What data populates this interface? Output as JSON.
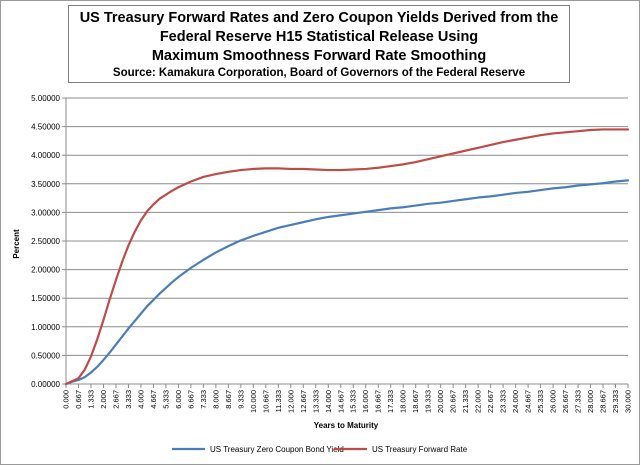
{
  "chart_data": {
    "type": "line",
    "title_lines": [
      "US Treasury Forward Rates and Zero Coupon Yields Derived from the",
      "Federal Reserve H15 Statistical Release Using",
      "Maximum Smoothness Forward Rate Smoothing"
    ],
    "subtitle": "Source: Kamakura Corporation, Board of Governors of the Federal Reserve",
    "xlabel": "Years to Maturity",
    "ylabel": "Percent",
    "ylim": [
      0,
      5
    ],
    "xlim": [
      0,
      30
    ],
    "y_ticks": [
      "0.00000",
      "0.50000",
      "1.00000",
      "1.50000",
      "2.00000",
      "2.50000",
      "3.00000",
      "3.50000",
      "4.00000",
      "4.50000",
      "5.00000"
    ],
    "x_ticks": [
      "0.000",
      "0.667",
      "1.333",
      "2.000",
      "2.667",
      "3.333",
      "4.000",
      "4.667",
      "5.333",
      "6.000",
      "6.667",
      "7.333",
      "8.000",
      "8.667",
      "9.333",
      "10.000",
      "10.667",
      "11.333",
      "12.000",
      "12.667",
      "13.333",
      "14.000",
      "14.667",
      "15.333",
      "16.000",
      "16.667",
      "17.333",
      "18.000",
      "18.667",
      "19.333",
      "20.000",
      "20.667",
      "21.333",
      "22.000",
      "22.667",
      "23.333",
      "24.000",
      "24.667",
      "25.333",
      "26.000",
      "26.667",
      "27.333",
      "28.000",
      "28.667",
      "29.333",
      "30.000"
    ],
    "grid": "horizontal",
    "legend_position": "bottom",
    "series": [
      {
        "name": "US Treasury Zero Coupon Bond Yield",
        "color": "#4a7ebb",
        "points": [
          [
            0,
            0
          ],
          [
            0.333,
            0.04
          ],
          [
            0.667,
            0.07
          ],
          [
            1.0,
            0.12
          ],
          [
            1.333,
            0.2
          ],
          [
            1.667,
            0.3
          ],
          [
            2.0,
            0.42
          ],
          [
            2.333,
            0.55
          ],
          [
            2.667,
            0.69
          ],
          [
            3.0,
            0.83
          ],
          [
            3.333,
            0.97
          ],
          [
            3.667,
            1.1
          ],
          [
            4.0,
            1.23
          ],
          [
            4.333,
            1.36
          ],
          [
            4.667,
            1.47
          ],
          [
            5.0,
            1.58
          ],
          [
            5.333,
            1.68
          ],
          [
            5.667,
            1.78
          ],
          [
            6.0,
            1.87
          ],
          [
            6.667,
            2.03
          ],
          [
            7.333,
            2.17
          ],
          [
            8.0,
            2.3
          ],
          [
            8.667,
            2.41
          ],
          [
            9.333,
            2.51
          ],
          [
            10.0,
            2.59
          ],
          [
            10.667,
            2.66
          ],
          [
            11.333,
            2.73
          ],
          [
            12.0,
            2.78
          ],
          [
            12.667,
            2.83
          ],
          [
            13.333,
            2.88
          ],
          [
            14.0,
            2.92
          ],
          [
            14.667,
            2.95
          ],
          [
            15.333,
            2.98
          ],
          [
            16.0,
            3.01
          ],
          [
            16.667,
            3.04
          ],
          [
            17.333,
            3.07
          ],
          [
            18.0,
            3.09
          ],
          [
            18.667,
            3.12
          ],
          [
            19.333,
            3.15
          ],
          [
            20.0,
            3.17
          ],
          [
            20.667,
            3.2
          ],
          [
            21.333,
            3.23
          ],
          [
            22.0,
            3.26
          ],
          [
            22.667,
            3.28
          ],
          [
            23.333,
            3.31
          ],
          [
            24.0,
            3.34
          ],
          [
            24.667,
            3.36
          ],
          [
            25.333,
            3.39
          ],
          [
            26.0,
            3.42
          ],
          [
            26.667,
            3.44
          ],
          [
            27.333,
            3.47
          ],
          [
            28.0,
            3.49
          ],
          [
            28.667,
            3.51
          ],
          [
            29.333,
            3.54
          ],
          [
            30.0,
            3.56
          ]
        ]
      },
      {
        "name": "US Treasury Forward Rate",
        "color": "#be4b48",
        "points": [
          [
            0,
            0
          ],
          [
            0.333,
            0.05
          ],
          [
            0.667,
            0.1
          ],
          [
            1.0,
            0.25
          ],
          [
            1.333,
            0.48
          ],
          [
            1.667,
            0.78
          ],
          [
            2.0,
            1.12
          ],
          [
            2.333,
            1.48
          ],
          [
            2.667,
            1.82
          ],
          [
            3.0,
            2.14
          ],
          [
            3.333,
            2.42
          ],
          [
            3.667,
            2.66
          ],
          [
            4.0,
            2.86
          ],
          [
            4.333,
            3.02
          ],
          [
            4.667,
            3.14
          ],
          [
            5.0,
            3.24
          ],
          [
            5.333,
            3.31
          ],
          [
            5.667,
            3.38
          ],
          [
            6.0,
            3.44
          ],
          [
            6.667,
            3.54
          ],
          [
            7.333,
            3.62
          ],
          [
            8.0,
            3.67
          ],
          [
            8.667,
            3.71
          ],
          [
            9.333,
            3.74
          ],
          [
            10.0,
            3.76
          ],
          [
            10.667,
            3.77
          ],
          [
            11.333,
            3.77
          ],
          [
            12.0,
            3.76
          ],
          [
            12.667,
            3.76
          ],
          [
            13.333,
            3.75
          ],
          [
            14.0,
            3.74
          ],
          [
            14.667,
            3.74
          ],
          [
            15.333,
            3.75
          ],
          [
            16.0,
            3.76
          ],
          [
            16.667,
            3.78
          ],
          [
            17.333,
            3.81
          ],
          [
            18.0,
            3.84
          ],
          [
            18.667,
            3.88
          ],
          [
            19.333,
            3.93
          ],
          [
            20.0,
            3.98
          ],
          [
            20.667,
            4.03
          ],
          [
            21.333,
            4.08
          ],
          [
            22.0,
            4.13
          ],
          [
            22.667,
            4.18
          ],
          [
            23.333,
            4.23
          ],
          [
            24.0,
            4.27
          ],
          [
            24.667,
            4.31
          ],
          [
            25.333,
            4.35
          ],
          [
            26.0,
            4.38
          ],
          [
            26.667,
            4.4
          ],
          [
            27.333,
            4.42
          ],
          [
            28.0,
            4.44
          ],
          [
            28.667,
            4.45
          ],
          [
            29.333,
            4.45
          ],
          [
            30.0,
            4.45
          ]
        ]
      }
    ]
  }
}
